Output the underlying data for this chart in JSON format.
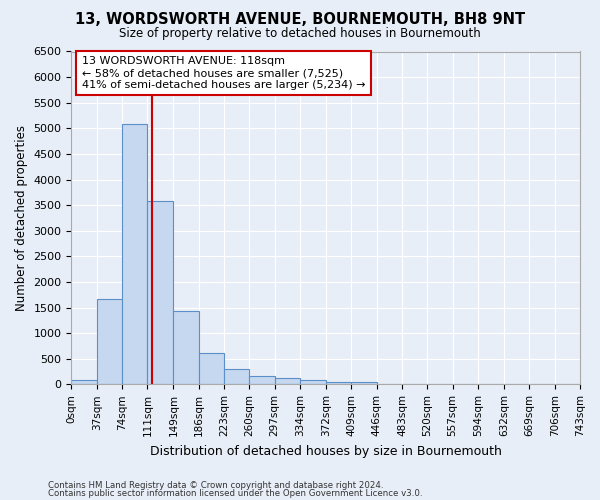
{
  "title1": "13, WORDSWORTH AVENUE, BOURNEMOUTH, BH8 9NT",
  "title2": "Size of property relative to detached houses in Bournemouth",
  "xlabel": "Distribution of detached houses by size in Bournemouth",
  "ylabel": "Number of detached properties",
  "bin_edges": [
    0,
    37,
    74,
    111,
    149,
    186,
    223,
    260,
    297,
    334,
    372,
    409,
    446,
    483,
    520,
    557,
    594,
    632,
    669,
    706,
    743
  ],
  "bar_heights": [
    75,
    1670,
    5075,
    3580,
    1430,
    620,
    300,
    155,
    120,
    75,
    50,
    50,
    0,
    0,
    0,
    0,
    0,
    0,
    0,
    0
  ],
  "bar_color": "#c5d8f0",
  "bar_edge_color": "#5b8fc9",
  "vline_x": 118,
  "vline_color": "#cc0000",
  "annotation_text": "13 WORDSWORTH AVENUE: 118sqm\n← 58% of detached houses are smaller (7,525)\n41% of semi-detached houses are larger (5,234) →",
  "annotation_box_color": "#ffffff",
  "annotation_box_edge_color": "#cc0000",
  "ylim": [
    0,
    6500
  ],
  "yticks": [
    0,
    500,
    1000,
    1500,
    2000,
    2500,
    3000,
    3500,
    4000,
    4500,
    5000,
    5500,
    6000,
    6500
  ],
  "tick_labels": [
    "0sqm",
    "37sqm",
    "74sqm",
    "111sqm",
    "149sqm",
    "186sqm",
    "223sqm",
    "260sqm",
    "297sqm",
    "334sqm",
    "372sqm",
    "409sqm",
    "446sqm",
    "483sqm",
    "520sqm",
    "557sqm",
    "594sqm",
    "632sqm",
    "669sqm",
    "706sqm",
    "743sqm"
  ],
  "footer1": "Contains HM Land Registry data © Crown copyright and database right 2024.",
  "footer2": "Contains public sector information licensed under the Open Government Licence v3.0.",
  "bg_color": "#e8eef7",
  "plot_bg_color": "#e8eef7",
  "grid_color": "#ffffff",
  "figsize": [
    6.0,
    5.0
  ],
  "dpi": 100
}
